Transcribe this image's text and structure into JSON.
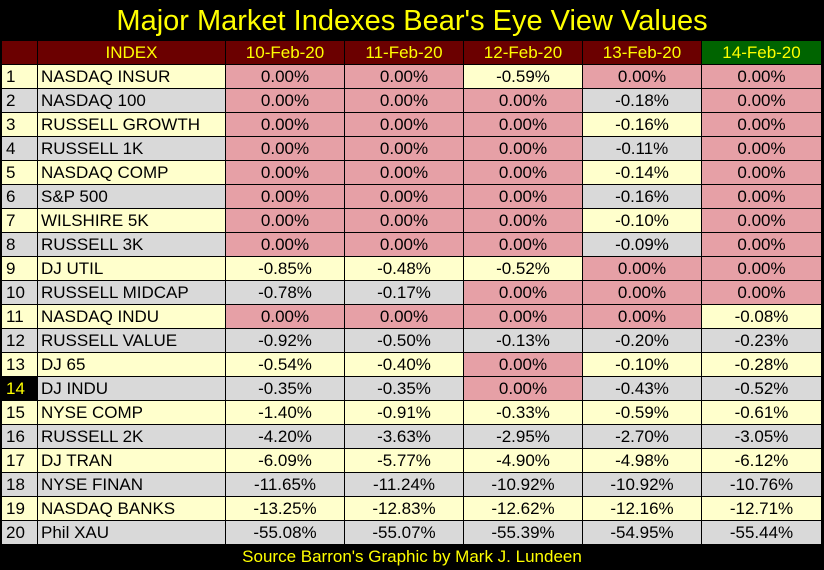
{
  "chart_data": {
    "type": "table",
    "title": "Major Market Indexes Bear's Eye View Values",
    "source": "Source Barron's   Graphic by Mark J. Lundeen",
    "index_header": "INDEX",
    "dates": [
      "10-Feb-20",
      "11-Feb-20",
      "12-Feb-20",
      "13-Feb-20",
      "14-Feb-20"
    ],
    "rows": [
      {
        "rank": "1",
        "name": "NASDAQ INSUR",
        "values": [
          "0.00%",
          "0.00%",
          "-0.59%",
          "0.00%",
          "0.00%"
        ]
      },
      {
        "rank": "2",
        "name": "NASDAQ 100",
        "values": [
          "0.00%",
          "0.00%",
          "0.00%",
          "-0.18%",
          "0.00%"
        ]
      },
      {
        "rank": "3",
        "name": "RUSSELL GROWTH",
        "values": [
          "0.00%",
          "0.00%",
          "0.00%",
          "-0.16%",
          "0.00%"
        ]
      },
      {
        "rank": "4",
        "name": "RUSSELL 1K",
        "values": [
          "0.00%",
          "0.00%",
          "0.00%",
          "-0.11%",
          "0.00%"
        ]
      },
      {
        "rank": "5",
        "name": "NASDAQ COMP",
        "values": [
          "0.00%",
          "0.00%",
          "0.00%",
          "-0.14%",
          "0.00%"
        ]
      },
      {
        "rank": "6",
        "name": "S&P 500",
        "values": [
          "0.00%",
          "0.00%",
          "0.00%",
          "-0.16%",
          "0.00%"
        ]
      },
      {
        "rank": "7",
        "name": "WILSHIRE 5K",
        "values": [
          "0.00%",
          "0.00%",
          "0.00%",
          "-0.10%",
          "0.00%"
        ]
      },
      {
        "rank": "8",
        "name": "RUSSELL 3K",
        "values": [
          "0.00%",
          "0.00%",
          "0.00%",
          "-0.09%",
          "0.00%"
        ]
      },
      {
        "rank": "9",
        "name": "DJ  UTIL",
        "values": [
          "-0.85%",
          "-0.48%",
          "-0.52%",
          "0.00%",
          "0.00%"
        ]
      },
      {
        "rank": "10",
        "name": "RUSSELL MIDCAP",
        "values": [
          "-0.78%",
          "-0.17%",
          "0.00%",
          "0.00%",
          "0.00%"
        ]
      },
      {
        "rank": "11",
        "name": "NASDAQ INDU",
        "values": [
          "0.00%",
          "0.00%",
          "0.00%",
          "0.00%",
          "-0.08%"
        ]
      },
      {
        "rank": "12",
        "name": "RUSSELL VALUE",
        "values": [
          "-0.92%",
          "-0.50%",
          "-0.13%",
          "-0.20%",
          "-0.23%"
        ]
      },
      {
        "rank": "13",
        "name": "DJ  65",
        "values": [
          "-0.54%",
          "-0.40%",
          "0.00%",
          "-0.10%",
          "-0.28%"
        ]
      },
      {
        "rank": "14",
        "name": "DJ  INDU",
        "values": [
          "-0.35%",
          "-0.35%",
          "0.00%",
          "-0.43%",
          "-0.52%"
        ]
      },
      {
        "rank": "15",
        "name": "NYSE COMP",
        "values": [
          "-1.40%",
          "-0.91%",
          "-0.33%",
          "-0.59%",
          "-0.61%"
        ]
      },
      {
        "rank": "16",
        "name": "RUSSELL 2K",
        "values": [
          "-4.20%",
          "-3.63%",
          "-2.95%",
          "-2.70%",
          "-3.05%"
        ]
      },
      {
        "rank": "17",
        "name": "DJ  TRAN",
        "values": [
          "-6.09%",
          "-5.77%",
          "-4.90%",
          "-4.98%",
          "-6.12%"
        ]
      },
      {
        "rank": "18",
        "name": "NYSE FINAN",
        "values": [
          "-11.65%",
          "-11.24%",
          "-10.92%",
          "-10.92%",
          "-10.76%"
        ]
      },
      {
        "rank": "19",
        "name": "NASDAQ BANKS",
        "values": [
          "-13.25%",
          "-12.83%",
          "-12.62%",
          "-12.16%",
          "-12.71%"
        ]
      },
      {
        "rank": "20",
        "name": "Phil XAU",
        "values": [
          "-55.08%",
          "-55.07%",
          "-55.39%",
          "-54.95%",
          "-55.44%"
        ]
      }
    ],
    "highlight_rank": "14"
  },
  "colors": {
    "background": "#000000",
    "title_text": "#ffff00",
    "header_bg": "#6b0000",
    "header_last_bg": "#006400",
    "row_odd": "#ffffcc",
    "row_even": "#d9d9d9",
    "zero_value": "#e6a0a6"
  }
}
